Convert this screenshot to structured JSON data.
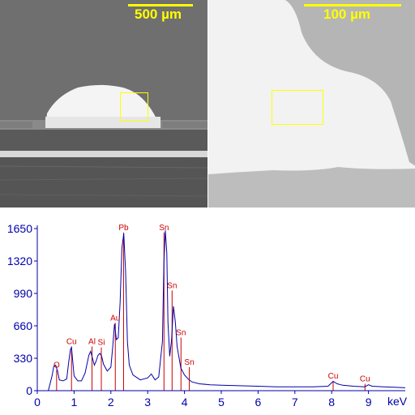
{
  "images": [
    {
      "scale_label": "500 µm",
      "roi_color": "#ffff00"
    },
    {
      "scale_label": "100 µm",
      "roi_color": "#ffff00"
    }
  ],
  "chart_data": {
    "type": "line",
    "title": "",
    "xlabel": "keV",
    "ylabel": "",
    "xlim": [
      0,
      10
    ],
    "ylim": [
      0,
      1650
    ],
    "xticks": [
      "0",
      "1",
      "2",
      "3",
      "4",
      "5",
      "6",
      "7",
      "8",
      "9"
    ],
    "yticks": [
      "0",
      "330",
      "660",
      "990",
      "1320",
      "1650"
    ],
    "grid": false,
    "colors": {
      "spectrum": "#0000aa",
      "markers": "#cc0000",
      "axis_text": "#0000aa",
      "peak_labels": "#cc0000"
    },
    "series": [
      {
        "x": [
          0.3,
          0.4,
          0.45,
          0.5,
          0.55,
          0.6,
          0.7,
          0.8,
          0.85,
          0.9,
          0.93,
          1.0,
          1.1,
          1.2,
          1.3,
          1.4,
          1.45,
          1.5,
          1.55,
          1.6,
          1.65,
          1.7,
          1.75,
          1.8,
          1.9,
          2.0,
          2.05,
          2.1,
          2.15,
          2.2,
          2.25,
          2.3,
          2.35,
          2.4,
          2.45,
          2.5,
          2.6,
          2.8,
          3.0,
          3.1,
          3.2,
          3.3,
          3.4,
          3.44,
          3.48,
          3.52,
          3.55,
          3.6,
          3.65,
          3.7,
          3.75,
          3.8,
          3.9,
          4.0,
          4.1,
          4.2,
          4.4,
          4.7,
          5.0,
          5.5,
          6.0,
          6.5,
          7.0,
          7.5,
          7.9,
          8.04,
          8.15,
          8.3,
          8.6,
          8.9,
          9.0,
          9.1,
          9.4,
          9.7,
          10.0
        ],
        "y": [
          0,
          150,
          250,
          260,
          200,
          110,
          100,
          120,
          280,
          420,
          440,
          150,
          100,
          100,
          180,
          360,
          400,
          330,
          260,
          300,
          360,
          380,
          350,
          270,
          200,
          240,
          450,
          680,
          520,
          540,
          900,
          1450,
          1600,
          1200,
          500,
          260,
          160,
          110,
          130,
          170,
          110,
          140,
          500,
          1300,
          1630,
          1400,
          700,
          350,
          520,
          860,
          700,
          450,
          230,
          160,
          120,
          90,
          70,
          60,
          55,
          50,
          45,
          40,
          40,
          40,
          45,
          95,
          70,
          55,
          45,
          40,
          60,
          45,
          40,
          35,
          30
        ]
      }
    ],
    "peak_markers": [
      {
        "label": "O",
        "x": 0.525,
        "height": 210
      },
      {
        "label": "Cu",
        "x": 0.93,
        "height": 450
      },
      {
        "label": "Al",
        "x": 1.487,
        "height": 450
      },
      {
        "label": "Si",
        "x": 1.74,
        "height": 440
      },
      {
        "label": "Au",
        "x": 2.12,
        "height": 690
      },
      {
        "label": "Pb",
        "x": 2.345,
        "height": 1610
      },
      {
        "label": "Sn",
        "x": 3.443,
        "height": 1610
      },
      {
        "label": "Sn",
        "x": 3.663,
        "height": 1020
      },
      {
        "label": "Sn",
        "x": 3.905,
        "height": 540
      },
      {
        "label": "Sn",
        "x": 4.131,
        "height": 240
      },
      {
        "label": "Cu",
        "x": 8.04,
        "height": 100
      },
      {
        "label": "Cu",
        "x": 8.905,
        "height": 70
      }
    ]
  }
}
